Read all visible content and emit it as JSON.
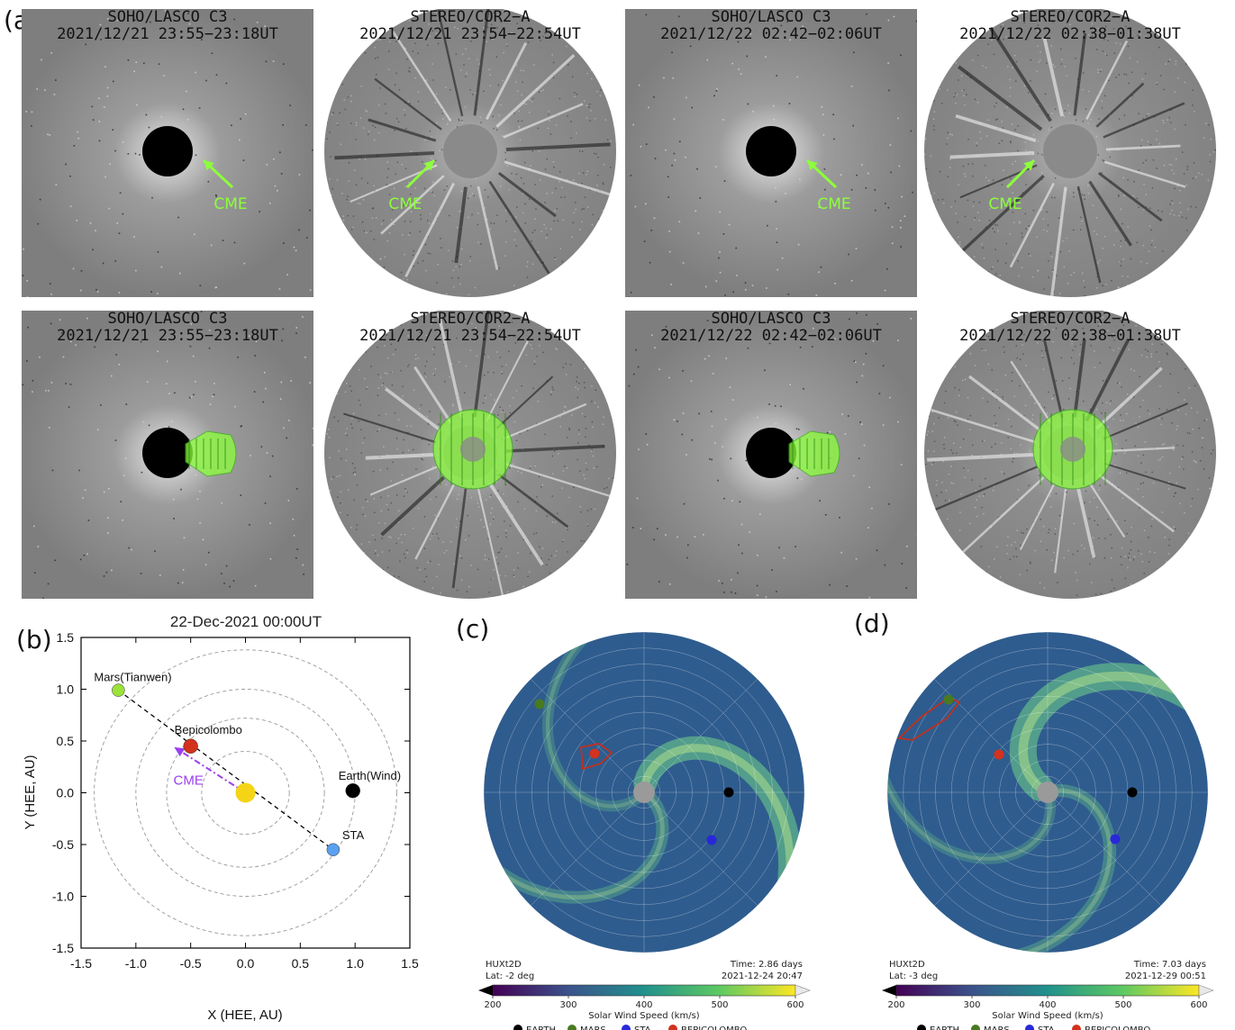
{
  "panels": {
    "a": "(a)",
    "b": "(b)",
    "c": "(c)",
    "d": "(d)"
  },
  "coronagraph": [
    {
      "instrument": "SOHO/LASCO C3",
      "time": "2021/12/21 23:55−23:18UT",
      "label": "CME"
    },
    {
      "instrument": "STEREO/COR2−A",
      "time": "2021/12/21 23:54−22:54UT",
      "label": "CME"
    },
    {
      "instrument": "SOHO/LASCO C3",
      "time": "2021/12/22 02:42−02:06UT",
      "label": "CME"
    },
    {
      "instrument": "STEREO/COR2−A",
      "time": "2021/12/22 02:38−01:38UT",
      "label": "CME"
    },
    {
      "instrument": "SOHO/LASCO C3",
      "time": "2021/12/21 23:55−23:18UT"
    },
    {
      "instrument": "STEREO/COR2−A",
      "time": "2021/12/21 23:54−22:54UT"
    },
    {
      "instrument": "SOHO/LASCO C3",
      "time": "2021/12/22 02:42−02:06UT"
    },
    {
      "instrument": "STEREO/COR2−A",
      "time": "2021/12/22 02:38−01:38UT"
    }
  ],
  "colors": {
    "cme": "#8cff3a",
    "mars": "#9be23a",
    "bepi": "#d2321e",
    "earth": "#000000",
    "sta": "#5aa0f0",
    "sun": "#f5d418",
    "cme_arrow": "#9b3ff0"
  },
  "chart_data": [
    {
      "type": "scatter",
      "title": "22-Dec-2021 00:00UT",
      "xlabel": "X (HEE, AU)",
      "ylabel": "Y (HEE, AU)",
      "xlim": [
        -1.5,
        1.5
      ],
      "ylim": [
        -1.5,
        1.5
      ],
      "xticks": [
        "-1.5",
        "-1.0",
        "-0.5",
        "0.0",
        "0.5",
        "1.0",
        "1.5"
      ],
      "yticks": [
        "1.5",
        "1.0",
        "0.5",
        "0.0",
        "-0.5",
        "-1.0",
        "-1.5"
      ],
      "orbit_radii_au": [
        0.4,
        0.72,
        1.0,
        1.38
      ],
      "points": [
        {
          "name": "Mars(Tianwen)",
          "x": -1.16,
          "y": 0.99
        },
        {
          "name": "Bepicolombo",
          "x": -0.5,
          "y": 0.45
        },
        {
          "name": "Earth(Wind)",
          "x": 0.98,
          "y": 0.02
        },
        {
          "name": "STA",
          "x": 0.8,
          "y": -0.55
        },
        {
          "name": "Sun",
          "x": 0.0,
          "y": 0.0
        }
      ],
      "cme_label": "CME",
      "cme_arrow": {
        "from": [
          0.0,
          0.0
        ],
        "to": [
          -0.65,
          0.44
        ]
      }
    },
    {
      "type": "heatmap",
      "model": "HUXt2D",
      "lat": "Lat:  -2 deg",
      "time": "Time: 2.86 days",
      "date": "2021-12-24 20:47",
      "colorbar_label": "Solar Wind Speed (km/s)",
      "colorbar_ticks": [
        "200",
        "300",
        "400",
        "500",
        "600"
      ],
      "legend": [
        "EARTH",
        "MARS",
        "STA",
        "BEPICOLOMBO"
      ]
    },
    {
      "type": "heatmap",
      "model": "HUXt2D",
      "lat": "Lat:  -3 deg",
      "time": "Time: 7.03 days",
      "date": "2021-12-29 00:51",
      "colorbar_label": "Solar Wind Speed (km/s)",
      "colorbar_ticks": [
        "200",
        "300",
        "400",
        "500",
        "600"
      ],
      "legend": [
        "EARTH",
        "MARS",
        "STA",
        "BEPICOLOMBO"
      ]
    }
  ]
}
